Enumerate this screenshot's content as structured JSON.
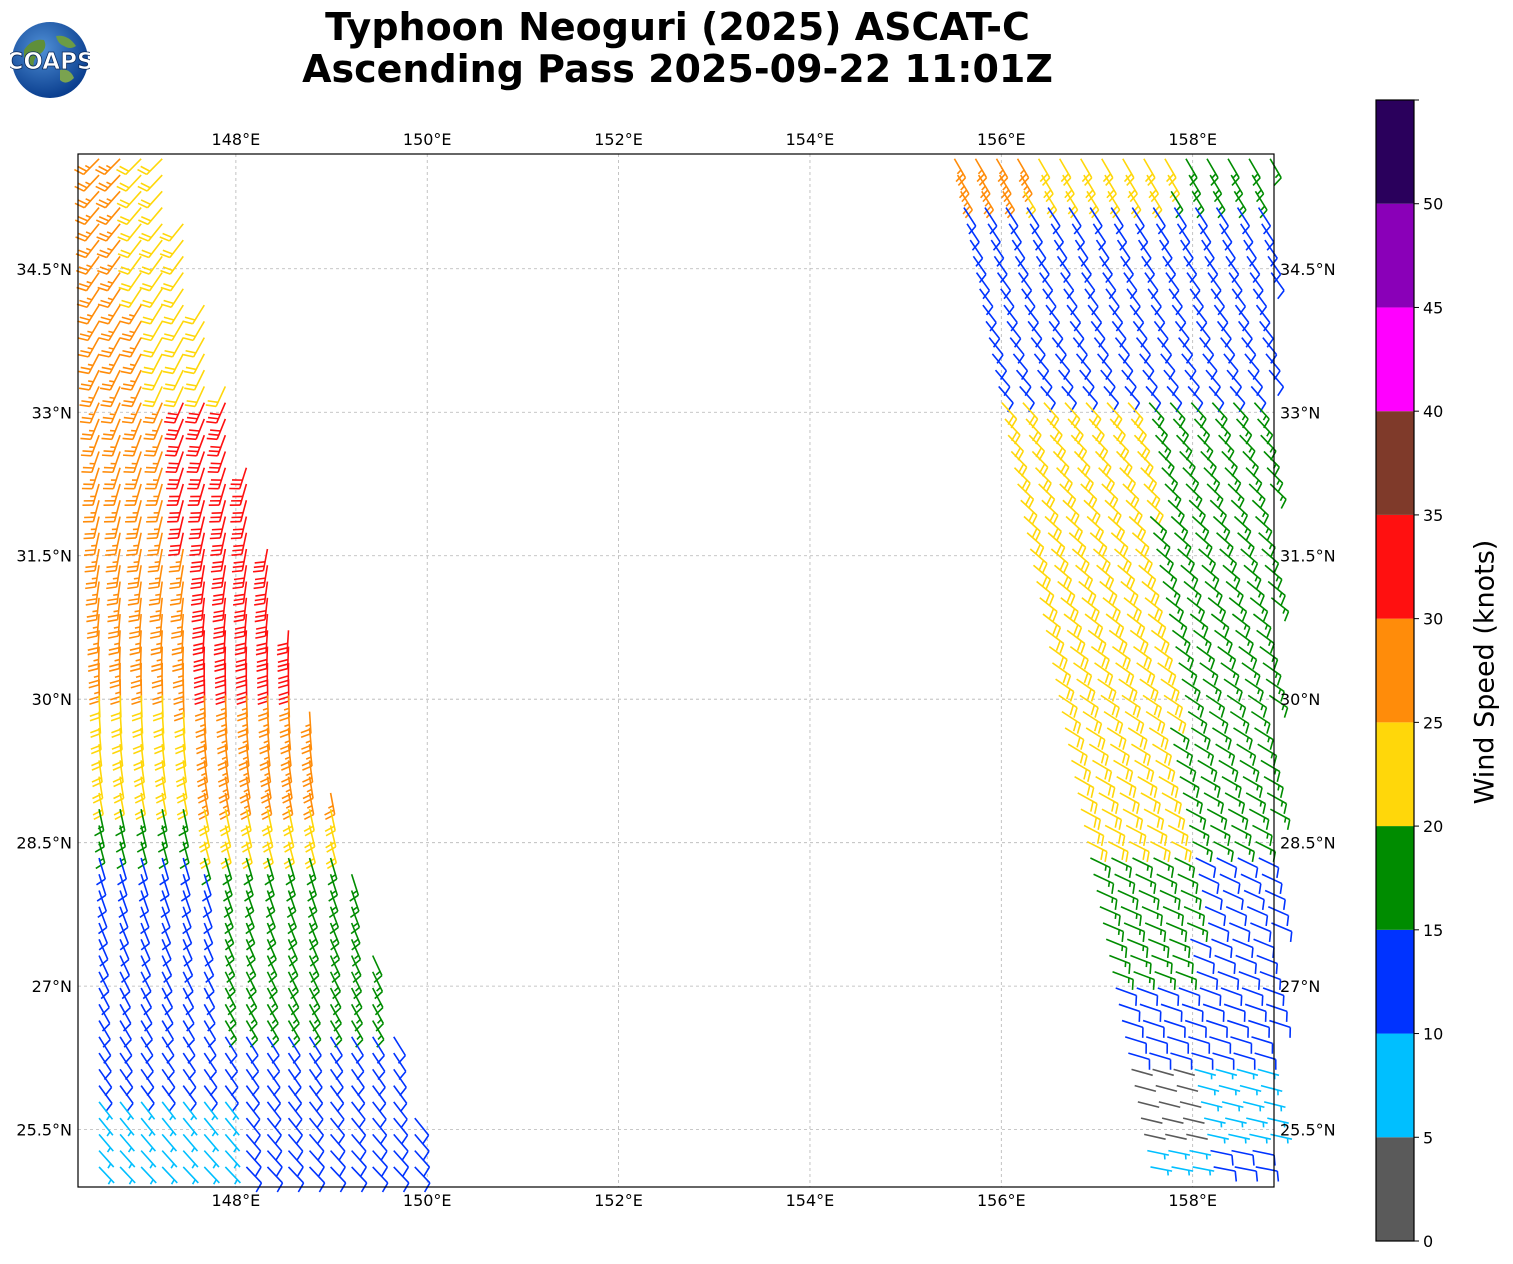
{
  "title": {
    "line1": "Typhoon Neoguri (2025) ASCAT-C",
    "line2": "Ascending Pass 2025-09-22 11:01Z"
  },
  "logo": {
    "text": "COAPS",
    "icon": "earth-globe-logo"
  },
  "map": {
    "lon_range": [
      146.35,
      158.85
    ],
    "lat_range": [
      24.9,
      35.7
    ],
    "lon_ticks": [
      148,
      150,
      152,
      154,
      156,
      158
    ],
    "lon_tick_labels": [
      "148°E",
      "150°E",
      "152°E",
      "154°E",
      "156°E",
      "158°E"
    ],
    "lat_ticks": [
      25.5,
      27,
      28.5,
      30,
      31.5,
      33,
      34.5
    ],
    "lat_tick_labels": [
      "25.5°N",
      "27°N",
      "28.5°N",
      "30°N",
      "31.5°N",
      "33°N",
      "34.5°N"
    ],
    "gridlines": true,
    "swaths": [
      {
        "name": "west-swath",
        "edge_north_lon": [
          146.35,
          147.3
        ],
        "edge_south_lon": [
          146.35,
          150.1
        ],
        "speed_field": [
          {
            "lat_min": 33.2,
            "lat_max": 35.7,
            "knots_west": 27,
            "knots_east": 23
          },
          {
            "lat_min": 31.8,
            "lat_max": 33.2,
            "knots_west": 27,
            "knots_east": 32
          },
          {
            "lat_min": 30.2,
            "lat_max": 31.8,
            "knots_west": 27,
            "knots_east": 32
          },
          {
            "lat_min": 29.0,
            "lat_max": 30.2,
            "knots_west": 23,
            "knots_east": 27
          },
          {
            "lat_min": 28.4,
            "lat_max": 29.0,
            "knots_west": 17,
            "knots_east": 23
          },
          {
            "lat_min": 26.6,
            "lat_max": 28.4,
            "knots_west": 13,
            "knots_east": 17
          },
          {
            "lat_min": 25.8,
            "lat_max": 26.6,
            "knots_west": 12,
            "knots_east": 13
          },
          {
            "lat_min": 24.9,
            "lat_max": 25.8,
            "knots_west": 8,
            "knots_east": 12
          }
        ],
        "direction_deg_north": 225,
        "direction_deg_south": 135
      },
      {
        "name": "east-swath",
        "edge_north_lon": [
          155.5,
          158.85
        ],
        "edge_south_lon": [
          157.6,
          158.85
        ],
        "speed_field": [
          {
            "lat_min": 35.3,
            "lat_max": 35.7,
            "knots_west": 27,
            "knots_east": 17
          },
          {
            "lat_min": 33.2,
            "lat_max": 35.3,
            "knots_west": 13,
            "knots_east": 13
          },
          {
            "lat_min": 28.5,
            "lat_max": 33.2,
            "knots_west": 23,
            "knots_east": 17
          },
          {
            "lat_min": 27.0,
            "lat_max": 28.5,
            "knots_west": 17,
            "knots_east": 13
          },
          {
            "lat_min": 26.2,
            "lat_max": 27.0,
            "knots_west": 13,
            "knots_east": 13
          },
          {
            "lat_min": 25.4,
            "lat_max": 26.2,
            "knots_west": 3,
            "knots_east": 8
          },
          {
            "lat_min": 24.9,
            "lat_max": 25.4,
            "knots_west": 8,
            "knots_east": 12
          }
        ],
        "direction_deg_north": 150,
        "direction_deg_south": 100
      }
    ]
  },
  "colorbar": {
    "label": "Wind Speed (knots)",
    "bins": [
      {
        "min": 0,
        "max": 5,
        "color": "#5a5a5a"
      },
      {
        "min": 5,
        "max": 10,
        "color": "#00bfff"
      },
      {
        "min": 10,
        "max": 15,
        "color": "#0033ff"
      },
      {
        "min": 15,
        "max": 20,
        "color": "#008c00"
      },
      {
        "min": 20,
        "max": 25,
        "color": "#ffd70a"
      },
      {
        "min": 25,
        "max": 30,
        "color": "#ff8c0a"
      },
      {
        "min": 30,
        "max": 35,
        "color": "#ff1010"
      },
      {
        "min": 35,
        "max": 40,
        "color": "#7f3a2a"
      },
      {
        "min": 40,
        "max": 45,
        "color": "#ff00ff"
      },
      {
        "min": 45,
        "max": 50,
        "color": "#8a00b8"
      },
      {
        "min": 50,
        "max": 55,
        "color": "#2a005c"
      }
    ],
    "tick_values": [
      0,
      5,
      10,
      15,
      20,
      25,
      30,
      35,
      40,
      45,
      50
    ],
    "tick_labels": [
      "0",
      "5",
      "10",
      "15",
      "20",
      "25",
      "30",
      "35",
      "40",
      "45",
      "50"
    ]
  }
}
